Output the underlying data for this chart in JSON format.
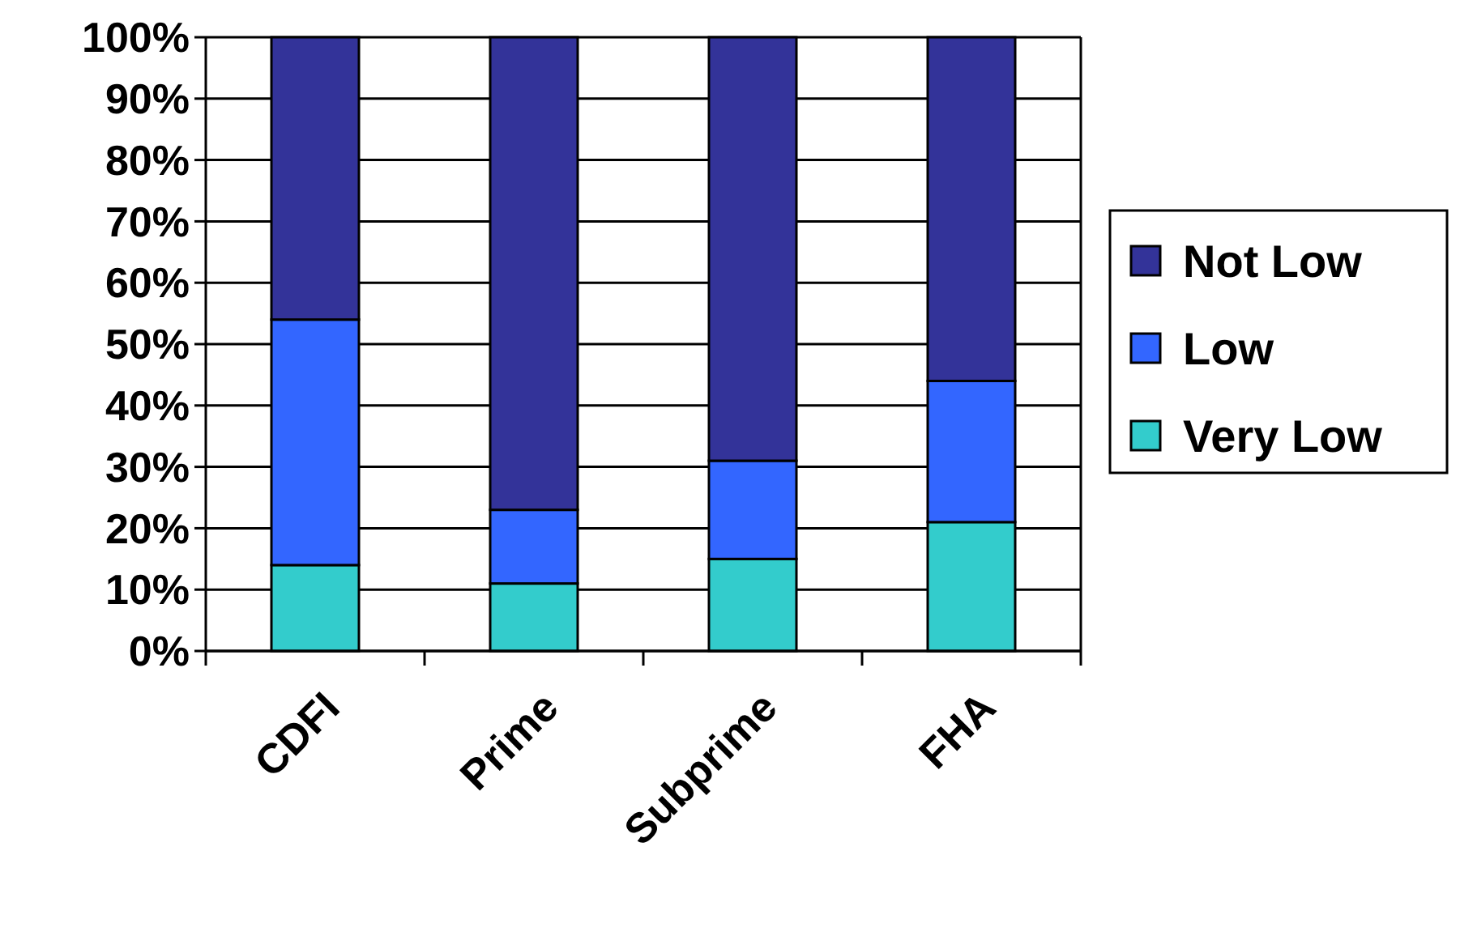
{
  "chart_data": {
    "type": "bar",
    "stacked": true,
    "categories": [
      "CDFI",
      "Prime",
      "Subprime",
      "FHA"
    ],
    "series": [
      {
        "name": "Very Low",
        "color": "#33cccc",
        "values": [
          14,
          11,
          15,
          21
        ]
      },
      {
        "name": "Low",
        "color": "#3366ff",
        "values": [
          40,
          12,
          16,
          23
        ]
      },
      {
        "name": "Not Low",
        "color": "#333399",
        "values": [
          46,
          77,
          69,
          56
        ]
      }
    ],
    "ylim": [
      0,
      100
    ],
    "yticks": [
      {
        "value": 0,
        "label": "0%"
      },
      {
        "value": 10,
        "label": "10%"
      },
      {
        "value": 20,
        "label": "20%"
      },
      {
        "value": 30,
        "label": "30%"
      },
      {
        "value": 40,
        "label": "40%"
      },
      {
        "value": 50,
        "label": "50%"
      },
      {
        "value": 60,
        "label": "60%"
      },
      {
        "value": 70,
        "label": "70%"
      },
      {
        "value": 80,
        "label": "80%"
      },
      {
        "value": 90,
        "label": "90%"
      },
      {
        "value": 100,
        "label": "100%"
      }
    ],
    "grid": "y",
    "legend": "right"
  }
}
